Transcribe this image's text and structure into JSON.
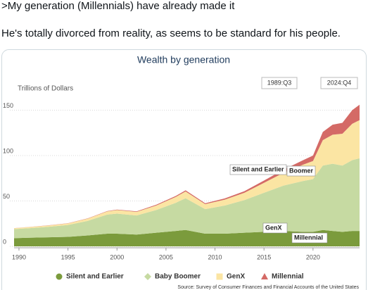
{
  "post": {
    "lines": [
      ">My generation (Millennials) have already made it",
      "He's totally divorced from reality, as seems to be standard for his people."
    ]
  },
  "chart_data": {
    "type": "stacked-area",
    "title": "Wealth by generation",
    "y_label": "Trillions of Dollars",
    "source": "Source: Survey of Consumer Finances and Financial Accounts of the United States",
    "annotations": [
      "1989:Q3",
      "2024:Q4",
      "Silent and Earlier",
      "Boomer",
      "GenX",
      "Millennial"
    ],
    "x": [
      1989.5,
      1991,
      1993,
      1995,
      1997,
      1999,
      2000,
      2002,
      2004,
      2006,
      2007,
      2009,
      2011,
      2013,
      2015,
      2017,
      2019,
      2020,
      2021,
      2022,
      2023,
      2024,
      2024.75
    ],
    "series": [
      {
        "name": "Silent and Earlier",
        "color": "#7b9b3c",
        "marker": "circle",
        "values": [
          9,
          9.5,
          10,
          10.5,
          12,
          14,
          14,
          13,
          15,
          17,
          18,
          14,
          14,
          15,
          16,
          17,
          16,
          16,
          18,
          17,
          16,
          17,
          17
        ]
      },
      {
        "name": "Baby Boomer",
        "color": "#c6daa2",
        "marker": "diamond",
        "values": [
          10,
          10.5,
          11.5,
          13,
          16,
          21,
          22,
          21,
          25,
          31,
          35,
          27,
          31,
          36,
          43,
          50,
          56,
          58,
          71,
          74,
          73,
          78,
          80
        ]
      },
      {
        "name": "GenX",
        "color": "#fbe5a3",
        "marker": "square",
        "values": [
          1,
          1.2,
          1.5,
          1.8,
          2.5,
          3.5,
          4,
          4,
          5,
          6.5,
          7.5,
          5.5,
          6.5,
          8,
          11,
          14,
          18,
          20,
          28,
          32,
          35,
          40,
          42
        ]
      },
      {
        "name": "Millennial",
        "color": "#d46a66",
        "marker": "triangle",
        "values": [
          0.1,
          0.1,
          0.2,
          0.2,
          0.3,
          0.4,
          0.5,
          0.6,
          0.8,
          1,
          1.2,
          1,
          1.3,
          1.8,
          2.5,
          3.5,
          5,
          6,
          9,
          11,
          12,
          15,
          17
        ]
      }
    ],
    "xlim": [
      1989.5,
      2024.75
    ],
    "xticks": [
      1990,
      1995,
      2000,
      2005,
      2010,
      2015,
      2020
    ],
    "ylim": [
      0,
      160
    ],
    "yticks": [
      0,
      50,
      100,
      150
    ],
    "grid": true
  }
}
